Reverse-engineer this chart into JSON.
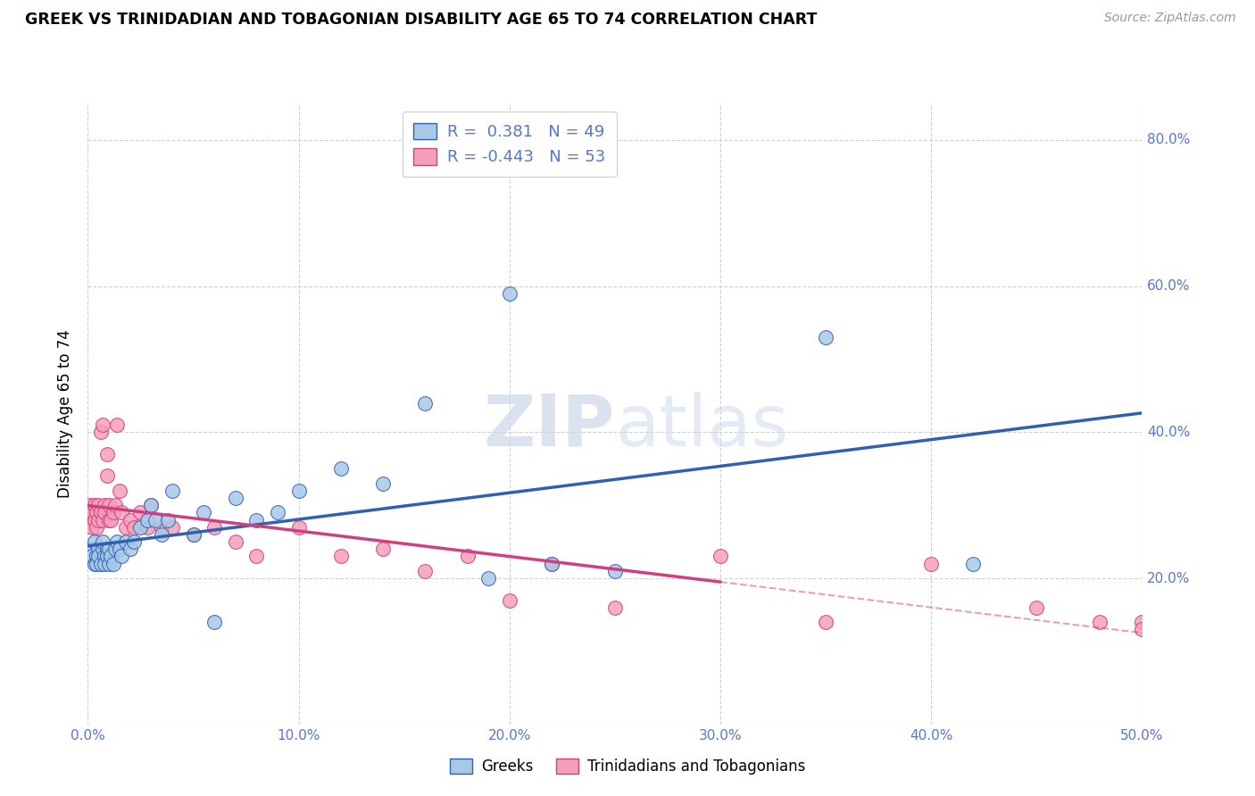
{
  "title": "GREEK VS TRINIDADIAN AND TOBAGONIAN DISABILITY AGE 65 TO 74 CORRELATION CHART",
  "source": "Source: ZipAtlas.com",
  "ylabel": "Disability Age 65 to 74",
  "xlim": [
    0.0,
    0.5
  ],
  "ylim": [
    0.0,
    0.85
  ],
  "xticks": [
    0.0,
    0.1,
    0.2,
    0.3,
    0.4,
    0.5
  ],
  "yticks": [
    0.0,
    0.2,
    0.4,
    0.6,
    0.8
  ],
  "greek_R": 0.381,
  "greek_N": 49,
  "tnt_R": -0.443,
  "tnt_N": 53,
  "blue_scatter_color": "#a8c8e8",
  "pink_scatter_color": "#f4a0b8",
  "blue_line_color": "#3060b0",
  "pink_line_color": "#d04080",
  "axis_color": "#5577cc",
  "watermark_color": "#ccd8ec",
  "legend_label_blue": "Greeks",
  "legend_label_pink": "Trinidadians and Tobagonians",
  "greek_x": [
    0.001,
    0.002,
    0.003,
    0.003,
    0.004,
    0.004,
    0.005,
    0.005,
    0.006,
    0.007,
    0.007,
    0.008,
    0.008,
    0.009,
    0.009,
    0.01,
    0.01,
    0.011,
    0.012,
    0.013,
    0.014,
    0.015,
    0.016,
    0.018,
    0.02,
    0.022,
    0.025,
    0.028,
    0.03,
    0.032,
    0.035,
    0.038,
    0.04,
    0.05,
    0.055,
    0.06,
    0.07,
    0.08,
    0.09,
    0.1,
    0.12,
    0.14,
    0.16,
    0.19,
    0.2,
    0.22,
    0.25,
    0.35,
    0.42
  ],
  "greek_y": [
    0.24,
    0.23,
    0.22,
    0.25,
    0.23,
    0.22,
    0.24,
    0.23,
    0.22,
    0.24,
    0.25,
    0.23,
    0.22,
    0.24,
    0.23,
    0.22,
    0.24,
    0.23,
    0.22,
    0.24,
    0.25,
    0.24,
    0.23,
    0.25,
    0.24,
    0.25,
    0.27,
    0.28,
    0.3,
    0.28,
    0.26,
    0.28,
    0.32,
    0.26,
    0.29,
    0.14,
    0.31,
    0.28,
    0.29,
    0.32,
    0.35,
    0.33,
    0.44,
    0.2,
    0.59,
    0.22,
    0.21,
    0.53,
    0.22
  ],
  "tnt_x": [
    0.001,
    0.001,
    0.002,
    0.002,
    0.003,
    0.003,
    0.004,
    0.004,
    0.005,
    0.005,
    0.006,
    0.006,
    0.007,
    0.007,
    0.008,
    0.008,
    0.009,
    0.009,
    0.01,
    0.01,
    0.011,
    0.012,
    0.013,
    0.014,
    0.015,
    0.016,
    0.018,
    0.02,
    0.022,
    0.025,
    0.028,
    0.03,
    0.035,
    0.04,
    0.05,
    0.06,
    0.07,
    0.08,
    0.1,
    0.12,
    0.14,
    0.16,
    0.18,
    0.2,
    0.22,
    0.25,
    0.3,
    0.35,
    0.4,
    0.45,
    0.48,
    0.5,
    0.5
  ],
  "tnt_y": [
    0.28,
    0.3,
    0.27,
    0.29,
    0.28,
    0.3,
    0.27,
    0.29,
    0.28,
    0.3,
    0.4,
    0.29,
    0.28,
    0.41,
    0.3,
    0.29,
    0.34,
    0.37,
    0.28,
    0.3,
    0.28,
    0.29,
    0.3,
    0.41,
    0.32,
    0.29,
    0.27,
    0.28,
    0.27,
    0.29,
    0.27,
    0.3,
    0.27,
    0.27,
    0.26,
    0.27,
    0.25,
    0.23,
    0.27,
    0.23,
    0.24,
    0.21,
    0.23,
    0.17,
    0.22,
    0.16,
    0.23,
    0.14,
    0.22,
    0.16,
    0.14,
    0.14,
    0.13
  ],
  "pink_line_solid_end": 0.3,
  "blue_line_start": 0.0,
  "blue_line_end": 0.5
}
